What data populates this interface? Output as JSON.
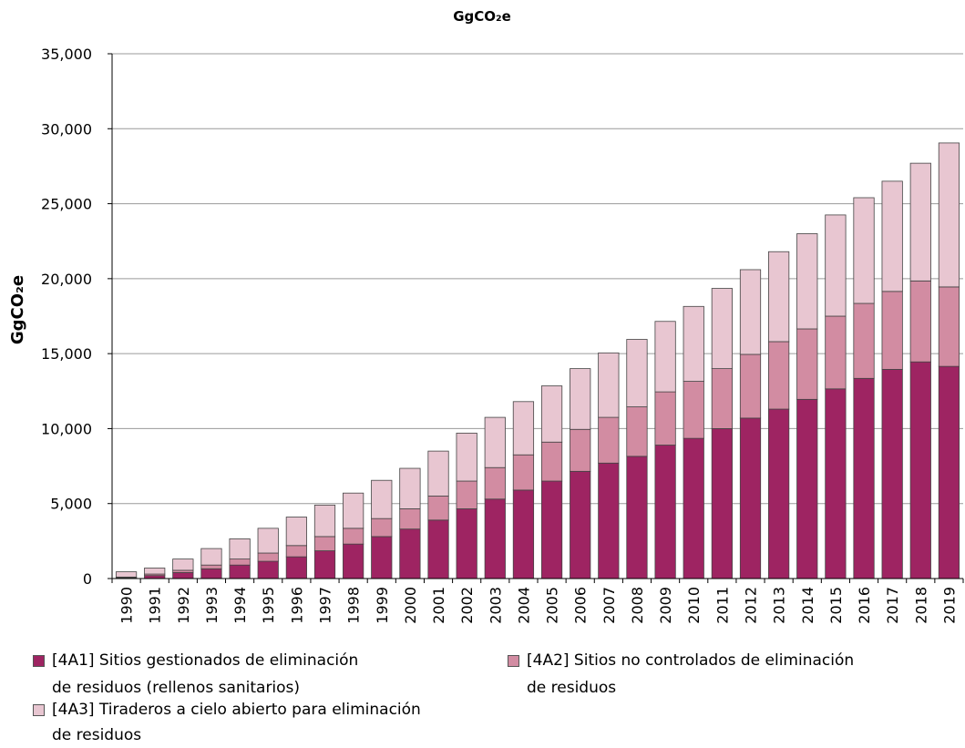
{
  "chart_data": {
    "type": "bar",
    "stacked": true,
    "title": "GgCO₂e",
    "ylabel": "GgCO₂e",
    "xlabel": "",
    "ylim": [
      0,
      35000
    ],
    "yticks": [
      0,
      5000,
      10000,
      15000,
      20000,
      25000,
      30000,
      35000
    ],
    "ytick_labels": [
      "0",
      "5,000",
      "10,000",
      "15,000",
      "20,000",
      "25,000",
      "30,000",
      "35,000"
    ],
    "grid": true,
    "legend_position": "bottom",
    "categories": [
      "1990",
      "1991",
      "1992",
      "1993",
      "1994",
      "1995",
      "1996",
      "1997",
      "1998",
      "1999",
      "2000",
      "2001",
      "2002",
      "2003",
      "2004",
      "2005",
      "2006",
      "2007",
      "2008",
      "2009",
      "2010",
      "2011",
      "2012",
      "2013",
      "2014",
      "2015",
      "2016",
      "2017",
      "2018",
      "2019"
    ],
    "series": [
      {
        "name": "[4A1] Sitios gestionados de eliminación de residuos (rellenos sanitarios)",
        "name_lines": [
          "[4A1] Sitios gestionados de eliminación",
          "de residuos (rellenos sanitarios)"
        ],
        "color": "#9e2462",
        "values": [
          50,
          200,
          400,
          650,
          900,
          1150,
          1450,
          1850,
          2300,
          2800,
          3300,
          3900,
          4650,
          5300,
          5900,
          6500,
          7150,
          7700,
          8150,
          8900,
          9350,
          10000,
          10700,
          11300,
          11950,
          12650,
          13350,
          13950,
          14450,
          14150
        ]
      },
      {
        "name": "[4A2] Sitios no controlados de eliminación de residuos",
        "name_lines": [
          "[4A2] Sitios no controlados de eliminación",
          "de residuos"
        ],
        "color": "#d28ca2",
        "values": [
          50,
          100,
          150,
          250,
          400,
          550,
          750,
          950,
          1050,
          1200,
          1350,
          1600,
          1850,
          2100,
          2350,
          2600,
          2800,
          3050,
          3300,
          3550,
          3800,
          4000,
          4250,
          4500,
          4700,
          4850,
          5000,
          5200,
          5400,
          5300
        ]
      },
      {
        "name": "[4A3] Tiraderos a cielo abierto para eliminación de residuos",
        "name_lines": [
          "[4A3] Tiraderos a cielo abierto para eliminación",
          "de residuos"
        ],
        "color": "#e8c6d1",
        "values": [
          350,
          400,
          750,
          1100,
          1350,
          1650,
          1900,
          2100,
          2350,
          2550,
          2700,
          3000,
          3200,
          3350,
          3550,
          3750,
          4050,
          4300,
          4500,
          4700,
          5000,
          5350,
          5650,
          6000,
          6350,
          6750,
          7050,
          7350,
          7850,
          9600
        ]
      }
    ]
  }
}
